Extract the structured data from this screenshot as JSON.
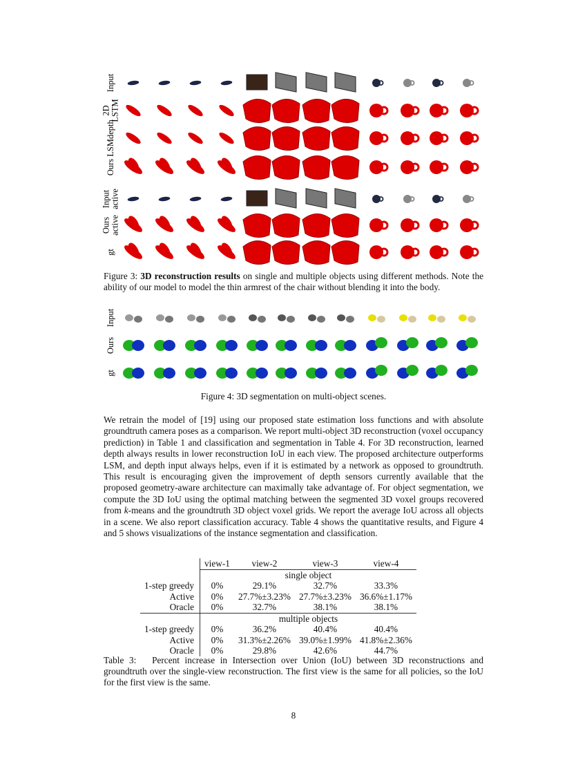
{
  "figure3": {
    "row_labels": [
      [
        "Input"
      ],
      [
        "2D",
        "LSTM"
      ],
      [
        "LSMdepth"
      ],
      [
        "Ours"
      ],
      [
        "Input",
        "active"
      ],
      [
        "Ours",
        "active"
      ],
      [
        "gt"
      ]
    ],
    "caption": {
      "label": "Figure 3:",
      "bold": "3D reconstruction results",
      "text": "on single and multiple objects using different methods. Note the ability of our model to model the thin armrest of the chair without blending it into the body."
    }
  },
  "figure4": {
    "row_labels": [
      [
        "Input"
      ],
      [
        "Ours"
      ],
      [
        "gt"
      ]
    ],
    "caption": "Figure 4: 3D segmentation on multi-object scenes."
  },
  "paragraph": {
    "before": "We retrain the model of [19] using our proposed state estimation loss functions and with absolute groundtruth camera poses as a comparison. We report multi-object 3D reconstruction (voxel occupancy prediction) in Table 1 and classification and segmentation in Table 4. For 3D reconstruction, learned depth always results in lower reconstruction IoU in each view. The proposed architecture outperforms LSM, and depth input always helps, even if it is estimated by a network as opposed to groundtruth. This result is encouraging given the improvement of depth sensors currently available that the proposed geometry-aware architecture can maximally take advantage of. For object segmentation, we compute the 3D IoU using the optimal matching between the segmented 3D voxel groups recovered from",
    "italic": "k",
    "after": "-means and the groundtruth 3D object voxel grids. We report the average IoU across all objects in a scene. We also report classification accuracy. Table 4 shows the quantitative results, and Figure  4 and  5 shows visualizations of the instance segmentation and classification."
  },
  "table": {
    "header": [
      "view-1",
      "view-2",
      "view-3",
      "view-4"
    ],
    "sections": [
      {
        "title": "single object",
        "rows": [
          [
            "1-step greedy",
            "0%",
            "29.1%",
            "32.7%",
            "33.3%"
          ],
          [
            "Active",
            "0%",
            "27.7%±3.23%",
            "27.7%±3.23%",
            "36.6%±1.17%"
          ],
          [
            "Oracle",
            "0%",
            "32.7%",
            "38.1%",
            "38.1%"
          ]
        ]
      },
      {
        "title": "multiple objects",
        "rows": [
          [
            "1-step greedy",
            "0%",
            "36.2%",
            "40.4%",
            "40.4%"
          ],
          [
            "Active",
            "0%",
            "31.3%±2.26%",
            "39.0%±1.99%",
            "41.8%±2.36%"
          ],
          [
            "Oracle",
            "0%",
            "29.8%",
            "42.6%",
            "44.7%"
          ]
        ]
      }
    ],
    "caption": {
      "label": "Table 3:",
      "text": "Percent increase in Intersection over Union (IoU) between 3D reconstructions and groundtruth over the single-view reconstruction.  The first view is the same for all policies, so the IoU for the first view is the same."
    }
  },
  "page_number": "8"
}
